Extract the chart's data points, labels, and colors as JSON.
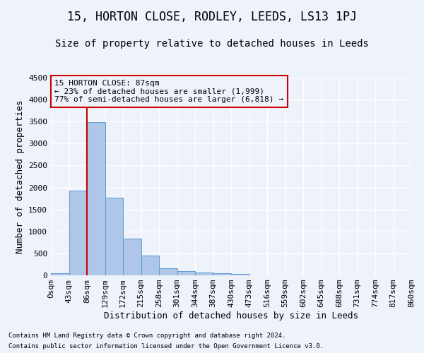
{
  "title": "15, HORTON CLOSE, RODLEY, LEEDS, LS13 1PJ",
  "subtitle": "Size of property relative to detached houses in Leeds",
  "xlabel": "Distribution of detached houses by size in Leeds",
  "ylabel": "Number of detached properties",
  "footer_line1": "Contains HM Land Registry data © Crown copyright and database right 2024.",
  "footer_line2": "Contains public sector information licensed under the Open Government Licence v3.0.",
  "bin_labels": [
    "0sqm",
    "43sqm",
    "86sqm",
    "129sqm",
    "172sqm",
    "215sqm",
    "258sqm",
    "301sqm",
    "344sqm",
    "387sqm",
    "430sqm",
    "473sqm",
    "516sqm",
    "559sqm",
    "602sqm",
    "645sqm",
    "688sqm",
    "731sqm",
    "774sqm",
    "817sqm",
    "860sqm"
  ],
  "bar_values": [
    45,
    1925,
    3490,
    1770,
    835,
    455,
    155,
    95,
    60,
    50,
    30,
    0,
    0,
    0,
    0,
    0,
    0,
    0,
    0,
    0
  ],
  "bar_color": "#aec6e8",
  "bar_edge_color": "#5b9bd5",
  "property_line_x": 2,
  "property_line_color": "#cc0000",
  "annotation_box_line1": "15 HORTON CLOSE: 87sqm",
  "annotation_box_line2": "← 23% of detached houses are smaller (1,999)",
  "annotation_box_line3": "77% of semi-detached houses are larger (6,818) →",
  "annotation_box_color": "#cc0000",
  "ylim": [
    0,
    4500
  ],
  "yticks": [
    0,
    500,
    1000,
    1500,
    2000,
    2500,
    3000,
    3500,
    4000,
    4500
  ],
  "background_color": "#eef2fa",
  "grid_color": "#ffffff",
  "title_fontsize": 12,
  "subtitle_fontsize": 10,
  "axis_label_fontsize": 9,
  "tick_fontsize": 8
}
